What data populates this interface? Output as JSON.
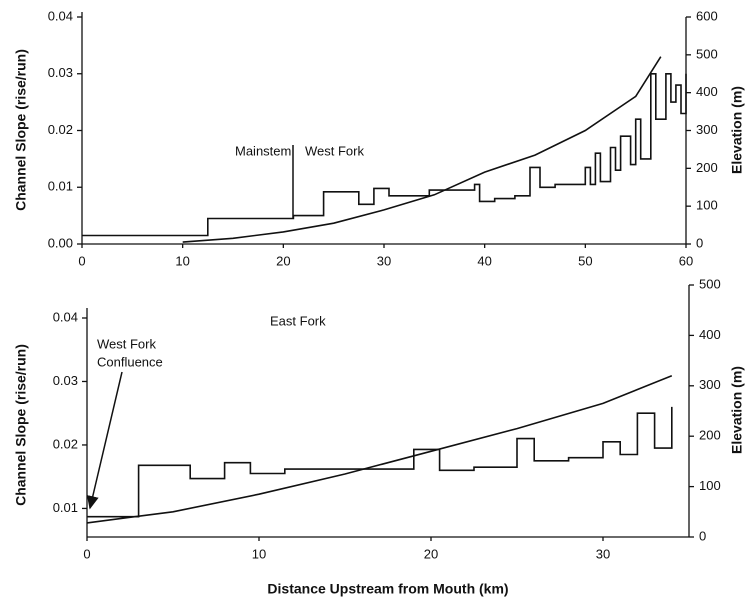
{
  "chart_data": [
    {
      "type": "line",
      "xlim": [
        0,
        60
      ],
      "xticks": [
        0,
        10,
        20,
        30,
        40,
        50,
        60
      ],
      "ylim": [
        0,
        0.04
      ],
      "yticks": [
        {
          "value": 0,
          "label": "0.00"
        },
        0.01,
        0.02,
        0.03,
        0.04
      ],
      "y2lim": [
        0,
        600
      ],
      "y2ticks": [
        0,
        100,
        200,
        300,
        400,
        500,
        600
      ],
      "y_label": "Channel Slope (rise/run)",
      "y2_label": "Elevation (m)",
      "annotations": [
        "Mainstem",
        "West Fork"
      ],
      "series": [
        {
          "color": "#111111",
          "axis": "y",
          "x": [
            0,
            12.5,
            12.5,
            21,
            21,
            24,
            24,
            27.5,
            27.5,
            29,
            29,
            30.5,
            30.5,
            34.5,
            34.5,
            39,
            39,
            39.5,
            39.5,
            41,
            41,
            43,
            43,
            44.5,
            44.5,
            45.5,
            45.5,
            47,
            47,
            50,
            50,
            50.5,
            50.5,
            51,
            51,
            51.5,
            51.5,
            52.5,
            52.5,
            53,
            53,
            53.5,
            53.5,
            54.5,
            54.5,
            55,
            55,
            55.5,
            55.5,
            56.5,
            56.5,
            57,
            57,
            58,
            58,
            58.5,
            58.5,
            59,
            59,
            59.5,
            59.5,
            60,
            60
          ],
          "values": [
            0.0015,
            0.0015,
            0.0045,
            0.0045,
            0.005,
            0.005,
            0.0092,
            0.0092,
            0.007,
            0.007,
            0.0098,
            0.0098,
            0.0085,
            0.0085,
            0.0095,
            0.0095,
            0.0105,
            0.0105,
            0.0075,
            0.0075,
            0.008,
            0.008,
            0.0085,
            0.0085,
            0.0135,
            0.0135,
            0.01,
            0.01,
            0.0105,
            0.0105,
            0.0135,
            0.0135,
            0.0105,
            0.0105,
            0.016,
            0.016,
            0.011,
            0.011,
            0.017,
            0.017,
            0.013,
            0.013,
            0.019,
            0.019,
            0.014,
            0.014,
            0.022,
            0.022,
            0.015,
            0.015,
            0.03,
            0.03,
            0.022,
            0.022,
            0.03,
            0.03,
            0.025,
            0.025,
            0.028,
            0.028,
            0.023,
            0.023,
            0.03
          ]
        },
        {
          "color": "#111111",
          "axis": "y2",
          "x": [
            10,
            15,
            20,
            25,
            30,
            35,
            40,
            45,
            50,
            55,
            57.5
          ],
          "values": [
            5,
            15,
            32,
            55,
            90,
            130,
            190,
            235,
            300,
            390,
            495
          ]
        }
      ]
    },
    {
      "type": "line",
      "xlim": [
        0,
        35
      ],
      "xticks": [
        0,
        10,
        20,
        30
      ],
      "ylim": [
        0.0055,
        0.04
      ],
      "yticks": [
        0.01,
        0.02,
        0.03,
        0.04
      ],
      "y2lim": [
        0,
        500
      ],
      "y2ticks": [
        0,
        100,
        200,
        300,
        400,
        500
      ],
      "y_label": "Channel Slope (rise/run)",
      "y2_label": "Elevation (m)",
      "x_label": "Distance Upstream from Mouth (km)",
      "annotations": [
        "East Fork",
        "West Fork",
        "Confluence"
      ],
      "series": [
        {
          "color": "#111111",
          "axis": "y",
          "x": [
            0,
            3,
            3,
            6,
            6,
            8,
            8,
            9.5,
            9.5,
            11.5,
            11.5,
            19,
            19,
            20.5,
            20.5,
            22.5,
            22.5,
            25,
            25,
            26,
            26,
            28,
            28,
            30,
            30,
            31,
            31,
            32,
            32,
            33,
            33,
            34,
            34
          ],
          "values": [
            0.0087,
            0.0087,
            0.0168,
            0.0168,
            0.0147,
            0.0147,
            0.0172,
            0.0172,
            0.0155,
            0.0155,
            0.0162,
            0.0162,
            0.0193,
            0.0193,
            0.016,
            0.016,
            0.0165,
            0.0165,
            0.021,
            0.021,
            0.0175,
            0.0175,
            0.018,
            0.018,
            0.0205,
            0.0205,
            0.0185,
            0.0185,
            0.025,
            0.025,
            0.0195,
            0.0195,
            0.026
          ]
        },
        {
          "color": "#111111",
          "axis": "y2",
          "x": [
            0,
            5,
            10,
            15,
            20,
            25,
            30,
            34
          ],
          "values": [
            28,
            50,
            85,
            125,
            170,
            215,
            265,
            320
          ]
        }
      ]
    }
  ]
}
